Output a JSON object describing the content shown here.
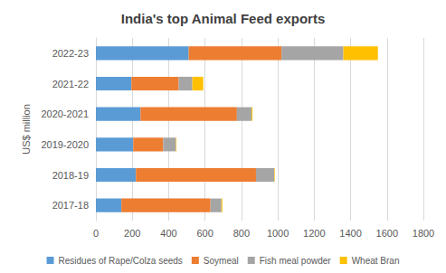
{
  "chart_data": {
    "type": "bar",
    "title": "India's top Animal Feed exports",
    "y_label": "US$ million",
    "orientation": "horizontal",
    "stacked": true,
    "grid": true,
    "legend": "bottom",
    "categories": [
      "2017-18",
      "2018-19",
      "2019-2020",
      "2020-2021",
      "2021-22",
      "2022-23"
    ],
    "series": [
      {
        "name": "Residues of Rape/Colza seeds",
        "color": "#5b9bd5",
        "values": [
          140,
          220,
          205,
          245,
          195,
          510
        ]
      },
      {
        "name": "Soymeal",
        "color": "#ed7d31",
        "values": [
          490,
          660,
          165,
          530,
          260,
          510
        ]
      },
      {
        "name": "Fish meal powder",
        "color": "#a5a5a5",
        "values": [
          60,
          100,
          70,
          80,
          75,
          340
        ]
      },
      {
        "name": "Wheat Bran",
        "color": "#ffc000",
        "values": [
          5,
          3,
          3,
          5,
          60,
          190
        ]
      }
    ],
    "xlim": [
      0,
      1800
    ],
    "xticks": [
      0,
      200,
      400,
      600,
      800,
      1000,
      1200,
      1400,
      1600,
      1800
    ]
  }
}
